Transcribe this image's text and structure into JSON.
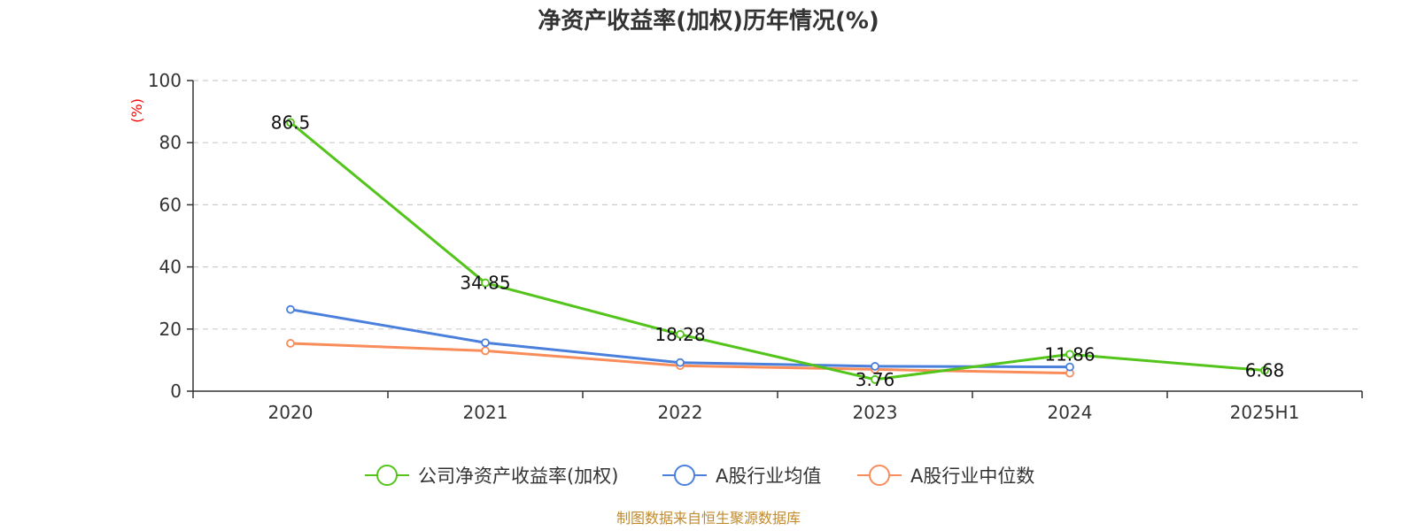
{
  "chart_data": {
    "type": "line",
    "title": "净资产收益率(加权)历年情况(%)",
    "ylabel": "(%)",
    "xlabel": "",
    "categories": [
      "2020",
      "2021",
      "2022",
      "2023",
      "2024",
      "2025H1"
    ],
    "ylim": [
      0,
      100
    ],
    "yticks": [
      0,
      20,
      40,
      60,
      80,
      100
    ],
    "grid": true,
    "legend_position": "bottom",
    "series": [
      {
        "name": "公司净资产收益率(加权)",
        "color": "#52c41a",
        "values": [
          86.5,
          34.85,
          18.28,
          3.76,
          11.86,
          6.68
        ],
        "labels": [
          "86.5",
          "34.85",
          "18.28",
          "3.76",
          "11.86",
          "6.68"
        ]
      },
      {
        "name": "A股行业均值",
        "color": "#4a7fdc",
        "values": [
          26.3,
          15.6,
          9.2,
          8.0,
          7.8,
          null
        ]
      },
      {
        "name": "A股行业中位数",
        "color": "#fa8c5a",
        "values": [
          15.4,
          13.0,
          8.2,
          7.0,
          5.8,
          null
        ]
      }
    ]
  },
  "source": "制图数据来自恒生聚源数据库"
}
